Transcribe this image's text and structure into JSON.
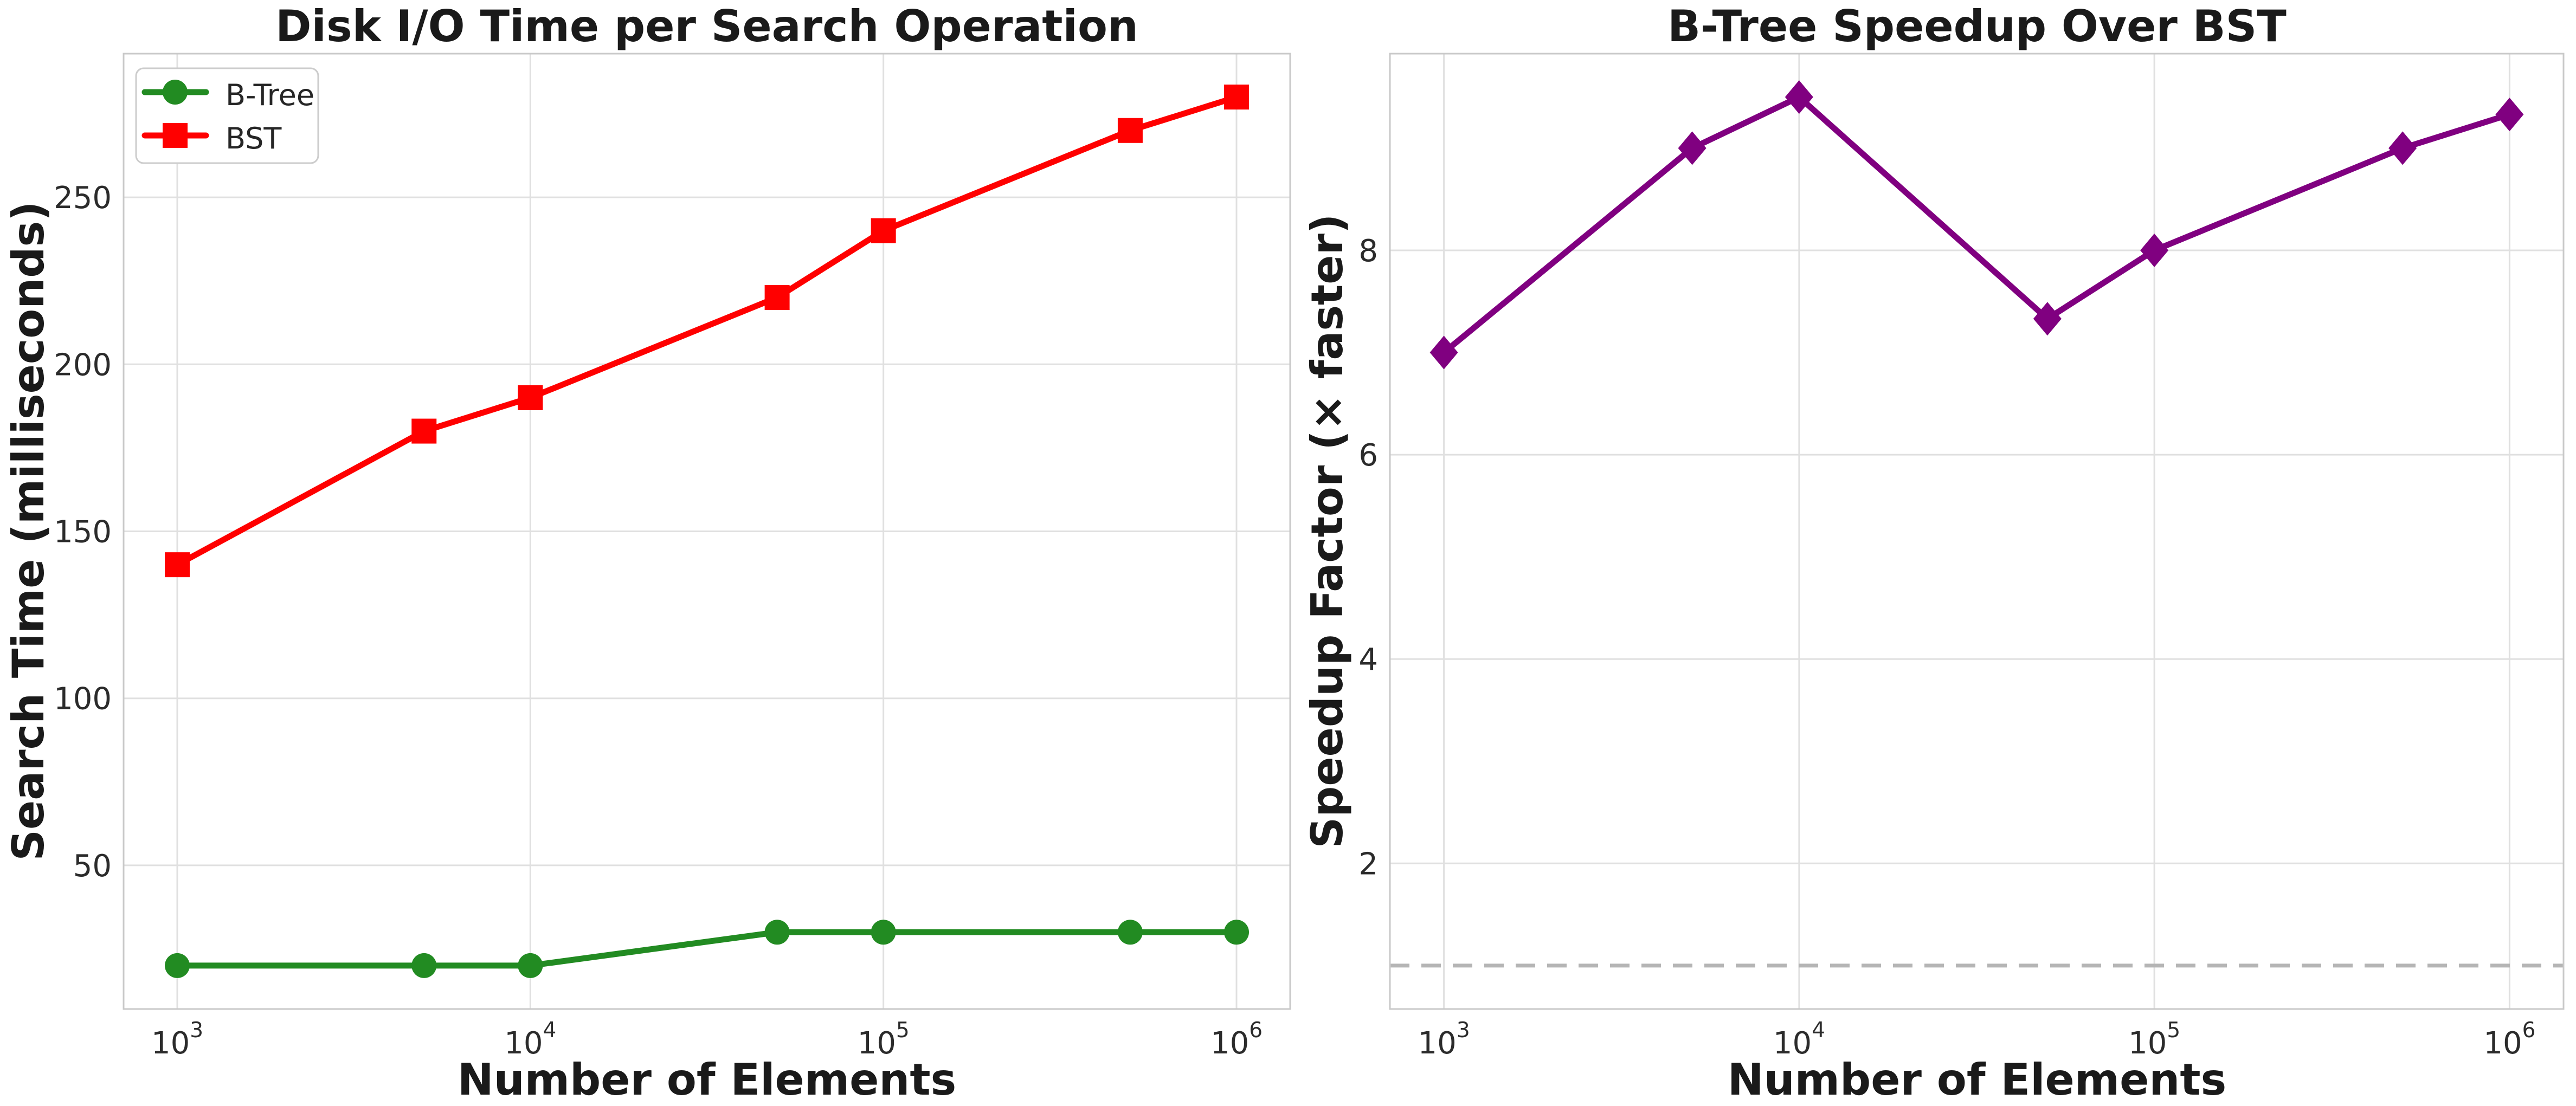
{
  "figure": {
    "background": "#ffffff"
  },
  "styles": {
    "grid_color": "#e0e0e0",
    "spine_color": "#c9c9c9",
    "tick_text_color": "#2b2b2b",
    "text_color": "#1a1a1a",
    "legend_border_color": "#cccccc",
    "legend_fill_color": "#ffffff"
  },
  "chart_data": [
    {
      "type": "line",
      "title": "Disk I/O Time per Search Operation",
      "xlabel": "Number of Elements",
      "ylabel": "Search Time (milliseconds)",
      "xscale": "log",
      "grid": true,
      "x": [
        1000,
        5000,
        10000,
        50000,
        100000,
        500000,
        1000000
      ],
      "series": [
        {
          "name": "B-Tree",
          "color": "#228B22",
          "marker": "circle",
          "values": [
            20,
            20,
            20,
            30,
            30,
            30,
            30
          ]
        },
        {
          "name": "BST",
          "color": "#ff0000",
          "marker": "square",
          "values": [
            140,
            180,
            190,
            220,
            240,
            270,
            280
          ]
        }
      ],
      "xticks": [
        {
          "value": 1000,
          "base": "10",
          "exponent": "3"
        },
        {
          "value": 10000,
          "base": "10",
          "exponent": "4"
        },
        {
          "value": 100000,
          "base": "10",
          "exponent": "5"
        },
        {
          "value": 1000000,
          "base": "10",
          "exponent": "6"
        }
      ],
      "yticks": [
        50,
        100,
        150,
        200,
        250
      ],
      "xlim_log10": [
        2.848,
        6.152
      ],
      "ylim": [
        7,
        293
      ],
      "legend": {
        "visible": true,
        "position": "upper left"
      }
    },
    {
      "type": "line",
      "title": "B-Tree Speedup Over BST",
      "xlabel": "Number of Elements",
      "ylabel": "Speedup Factor (× faster)",
      "xscale": "log",
      "grid": true,
      "x": [
        1000,
        5000,
        10000,
        50000,
        100000,
        500000,
        1000000
      ],
      "series": [
        {
          "name": "B-Tree Speedup",
          "color": "#800080",
          "marker": "diamond",
          "values": [
            7.0,
            9.0,
            9.5,
            7.33,
            8.0,
            9.0,
            9.33
          ]
        }
      ],
      "xticks": [
        {
          "value": 1000,
          "base": "10",
          "exponent": "3"
        },
        {
          "value": 10000,
          "base": "10",
          "exponent": "4"
        },
        {
          "value": 100000,
          "base": "10",
          "exponent": "5"
        },
        {
          "value": 1000000,
          "base": "10",
          "exponent": "6"
        }
      ],
      "yticks": [
        2,
        4,
        6,
        8
      ],
      "xlim_log10": [
        2.848,
        6.152
      ],
      "ylim": [
        0.575,
        9.925
      ],
      "legend": {
        "visible": false
      },
      "reference_line": {
        "y": 1.0,
        "style": "dashed",
        "color": "#b5b5b5"
      }
    }
  ]
}
